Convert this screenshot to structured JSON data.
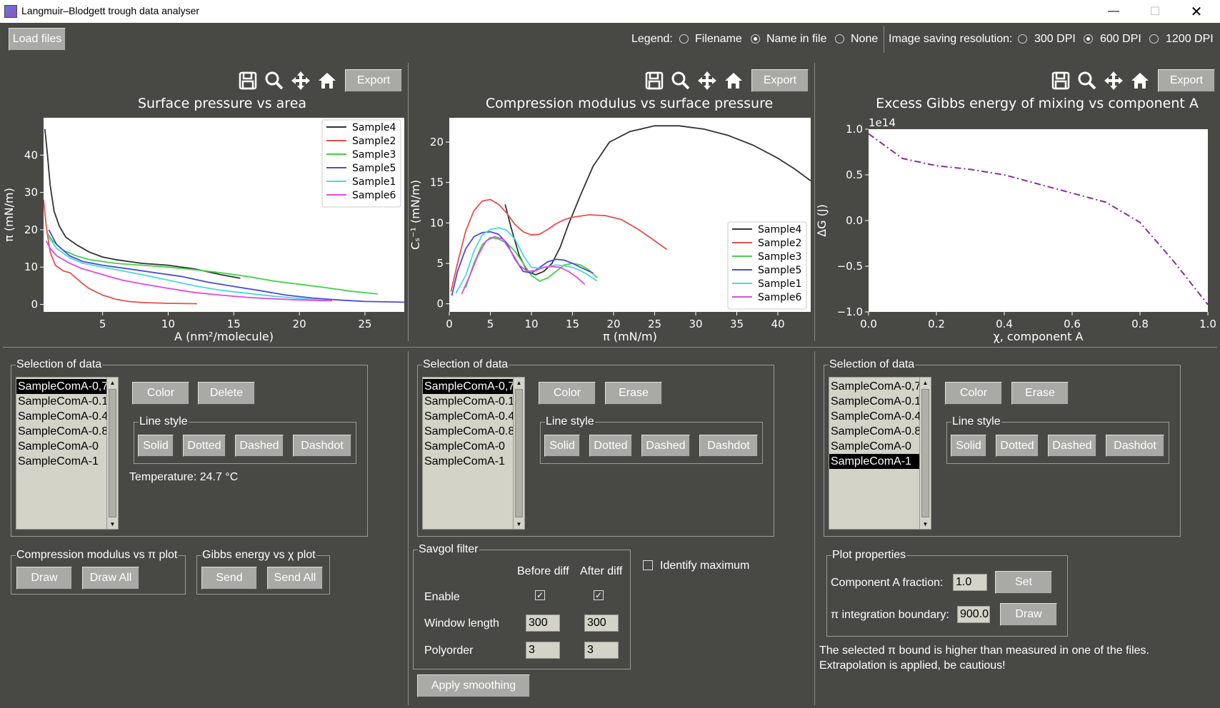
{
  "window": {
    "title": "Langmuir–Blodgett trough data analyser",
    "minimize_icon": "minimize-icon",
    "maximize_icon": "maximize-icon",
    "close_icon": "close-icon"
  },
  "toolbar": {
    "load_label": "Load files",
    "legend_label": "Legend:",
    "legend_options": [
      "Filename",
      "Name in file",
      "None"
    ],
    "legend_selected": "Name in file",
    "res_label": "Image saving resolution:",
    "res_options": [
      "300 DPI",
      "600 DPI",
      "1200 DPI"
    ],
    "res_selected": "600 DPI"
  },
  "plot_toolbar": {
    "icons": [
      "save-icon",
      "zoom-icon",
      "pan-icon",
      "home-icon"
    ],
    "export_label": "Export"
  },
  "colors": {
    "Sample4": "#333333",
    "Sample2": "#e8504a",
    "Sample3": "#44d04a",
    "Sample5": "#4b4bd8",
    "Sample1": "#4ad8e0",
    "Sample6": "#e04ae0",
    "gibbs": "#8b2c9b"
  },
  "chart_data": [
    {
      "type": "line",
      "title": "Surface pressure vs area",
      "xlabel": "A (nm²/molecule)",
      "ylabel": "π (mN/m)",
      "xlim": [
        0.5,
        28
      ],
      "ylim": [
        -2,
        50
      ],
      "xticks": [
        5,
        10,
        15,
        20,
        25
      ],
      "yticks": [
        0,
        10,
        20,
        30,
        40
      ],
      "legend": "top-right",
      "series": [
        {
          "name": "Sample4",
          "x": [
            0.6,
            0.8,
            1,
            1.3,
            1.7,
            2.2,
            3,
            4,
            5,
            6,
            8,
            10,
            12,
            14,
            15.5
          ],
          "y": [
            47,
            40,
            32,
            25,
            21,
            18,
            16,
            14,
            12.7,
            12,
            11,
            10.5,
            9.5,
            8,
            7
          ]
        },
        {
          "name": "Sample2",
          "x": [
            0.5,
            0.7,
            1,
            1.4,
            2,
            2.5,
            3,
            3.5,
            4,
            5,
            6,
            7,
            8,
            10,
            12.2
          ],
          "y": [
            28,
            21,
            14,
            10.5,
            9,
            8.5,
            7,
            5.5,
            4.2,
            2.5,
            1.4,
            0.8,
            0.5,
            0.3,
            0.2
          ]
        },
        {
          "name": "Sample3",
          "x": [
            0.8,
            1.2,
            2,
            3,
            4,
            6,
            8,
            10,
            12,
            14,
            16,
            18,
            20,
            22,
            24,
            26
          ],
          "y": [
            19,
            17,
            14.5,
            13,
            12,
            11,
            10.5,
            10,
            9.3,
            8.5,
            7.5,
            6.3,
            5.4,
            4.5,
            3.5,
            2.8
          ]
        },
        {
          "name": "Sample5",
          "x": [
            0.9,
            1.5,
            2.5,
            3.5,
            5,
            7,
            9,
            11,
            13,
            15,
            17,
            19,
            21,
            23,
            25,
            28
          ],
          "y": [
            20,
            16,
            13,
            11.5,
            10.5,
            9.5,
            8.5,
            7.5,
            6,
            4.8,
            3.7,
            2.5,
            1.7,
            1.2,
            0.8,
            0.6
          ]
        },
        {
          "name": "Sample1",
          "x": [
            0.9,
            1.5,
            2.5,
            3.5,
            5,
            6.5,
            8,
            10,
            12,
            14,
            16,
            18,
            20,
            22
          ],
          "y": [
            18,
            15,
            12.5,
            11,
            10,
            9,
            8,
            6.5,
            5,
            3.8,
            3,
            2.2,
            1.6,
            1
          ]
        },
        {
          "name": "Sample6",
          "x": [
            0.7,
            1,
            1.5,
            2.5,
            3.5,
            5,
            6.5,
            8,
            10,
            12,
            14,
            16,
            18,
            20,
            22.5
          ],
          "y": [
            17,
            15,
            13,
            11,
            9.5,
            8,
            6.5,
            5.5,
            4.3,
            3.2,
            2.5,
            1.9,
            1.5,
            1.2,
            1
          ]
        }
      ]
    },
    {
      "type": "line",
      "title": "Compression modulus vs surface pressure",
      "xlabel": "π (mN/m)",
      "ylabel": "Cₛ⁻¹ (mN/m)",
      "xlim": [
        0,
        44
      ],
      "ylim": [
        -1,
        23
      ],
      "xticks": [
        0,
        5,
        10,
        15,
        20,
        25,
        30,
        35,
        40
      ],
      "yticks": [
        0,
        5,
        10,
        15,
        20
      ],
      "legend": "lower-right",
      "series": [
        {
          "name": "Sample4",
          "x": [
            6.8,
            7.5,
            8.5,
            9.5,
            10.5,
            11.5,
            12.5,
            13.5,
            14.5,
            16,
            17.5,
            19.5,
            22,
            25,
            28,
            31,
            34,
            37,
            40,
            42,
            44
          ],
          "y": [
            12.3,
            9.5,
            6,
            4,
            3.6,
            4,
            5,
            7,
            9.8,
            13.5,
            17,
            20,
            21.3,
            22,
            22,
            21.6,
            20.8,
            19.6,
            18,
            16.7,
            15.2
          ]
        },
        {
          "name": "Sample2",
          "x": [
            0.2,
            1,
            2,
            3,
            4,
            5,
            6,
            7,
            8,
            9,
            10,
            11,
            12,
            13,
            14,
            15,
            17,
            19,
            21,
            23,
            25,
            26.5
          ],
          "y": [
            1.5,
            5,
            9,
            11.5,
            12.7,
            12.9,
            12.3,
            11.2,
            9.8,
            8.9,
            8.5,
            8.6,
            9.2,
            9.9,
            10.4,
            10.7,
            11,
            10.9,
            10.4,
            9.2,
            7.8,
            6.7
          ]
        },
        {
          "name": "Sample3",
          "x": [
            2,
            3,
            4,
            5,
            6,
            7,
            8,
            9,
            10,
            11,
            12,
            13,
            14,
            15,
            16,
            17,
            18
          ],
          "y": [
            2,
            5,
            7.3,
            8.2,
            8,
            7.5,
            6.5,
            5,
            3.5,
            2.8,
            3.2,
            4,
            4.8,
            5,
            4.8,
            4.2,
            3.2
          ]
        },
        {
          "name": "Sample5",
          "x": [
            0.3,
            1,
            2,
            3,
            4,
            5,
            6,
            7,
            8,
            9,
            10,
            11,
            12,
            13,
            14,
            15,
            16,
            17.5
          ],
          "y": [
            1,
            4,
            6.8,
            8.3,
            8.8,
            8.9,
            8.6,
            7.5,
            5.5,
            4,
            3.8,
            4.5,
            5.2,
            5.5,
            5.4,
            5,
            4.5,
            3.8
          ]
        },
        {
          "name": "Sample1",
          "x": [
            0.8,
            2,
            3,
            4,
            5,
            6,
            7,
            8,
            9,
            10,
            11,
            12,
            13,
            14,
            15,
            16,
            17,
            18
          ],
          "y": [
            1.3,
            3.5,
            6.5,
            8.5,
            9.2,
            9.4,
            9.1,
            8,
            6,
            4.5,
            4.4,
            4.6,
            4.8,
            4.7,
            4.5,
            4.1,
            3.5,
            2.8
          ]
        },
        {
          "name": "Sample6",
          "x": [
            1.5,
            2.5,
            3.5,
            4.5,
            5.5,
            6.5,
            7.5,
            8.5,
            9.5,
            10.5,
            11.5,
            12.5,
            13.5,
            14.5,
            15.5,
            16.5
          ],
          "y": [
            1.2,
            3.5,
            6,
            7.8,
            8.3,
            8,
            6.5,
            4.8,
            4,
            4.1,
            4.5,
            4.6,
            4.5,
            4,
            3.3,
            2.4
          ]
        }
      ]
    },
    {
      "type": "line",
      "title": "Excess Gibbs energy of mixing vs component A",
      "xlabel": "χ, component A",
      "ylabel": "ΔG (J)",
      "offset_label": "1e14",
      "xlim": [
        0,
        1
      ],
      "ylim": [
        -1,
        1
      ],
      "xticks": [
        "0.0",
        "0.2",
        "0.4",
        "0.6",
        "0.8",
        "1.0"
      ],
      "yticks": [
        "−1.0",
        "−0.5",
        "0.0",
        "0.5",
        "1.0"
      ],
      "series": [
        {
          "x": [
            0,
            0.1,
            0.2,
            0.3,
            0.4,
            0.5,
            0.6,
            0.7,
            0.8,
            0.9,
            1.0
          ],
          "y": [
            0.95,
            0.68,
            0.6,
            0.56,
            0.5,
            0.4,
            0.3,
            0.2,
            -0.02,
            -0.45,
            -0.92
          ]
        }
      ]
    }
  ],
  "panel1": {
    "frame_label": "Selection of data",
    "items": [
      "SampleComA-0,7",
      "SampleComA-0.1",
      "SampleComA-0.4",
      "SampleComA-0.8",
      "SampleComA-0",
      "SampleComA-1"
    ],
    "selected": 0,
    "color_label": "Color",
    "delete_label": "Delete",
    "linestyle_label": "Line style",
    "styles": [
      "Solid",
      "Dotted",
      "Dashed",
      "Dashdot"
    ],
    "temperature": "Temperature: 24.7 °C",
    "comp_frame": "Compression modulus vs π plot",
    "draw": "Draw",
    "draw_all": "Draw All",
    "gibbs_frame": "Gibbs energy vs χ plot",
    "send": "Send",
    "send_all": "Send All"
  },
  "panel2": {
    "frame_label": "Selection of data",
    "items": [
      "SampleComA-0,7",
      "SampleComA-0.1",
      "SampleComA-0.4",
      "SampleComA-0.8",
      "SampleComA-0",
      "SampleComA-1"
    ],
    "selected": 0,
    "color_label": "Color",
    "erase_label": "Erase",
    "linestyle_label": "Line style",
    "styles": [
      "Solid",
      "Dotted",
      "Dashed",
      "Dashdot"
    ],
    "savgol_frame": "Savgol filter",
    "before": "Before diff",
    "after": "After diff",
    "enable": "Enable",
    "window_length": "Window length",
    "polyorder": "Polyorder",
    "wl_before": "300",
    "wl_after": "300",
    "po_before": "3",
    "po_after": "3",
    "identify": "Identify maximum",
    "apply": "Apply smoothing"
  },
  "panel3": {
    "frame_label": "Selection of data",
    "items": [
      "SampleComA-0,7",
      "SampleComA-0.1",
      "SampleComA-0.4",
      "SampleComA-0.8",
      "SampleComA-0",
      "SampleComA-1"
    ],
    "selected": 5,
    "color_label": "Color",
    "erase_label": "Erase",
    "linestyle_label": "Line style",
    "styles": [
      "Solid",
      "Dotted",
      "Dashed",
      "Dashdot"
    ],
    "props_frame": "Plot properties",
    "comp_label": "Component A fraction:",
    "comp_value": "1.0",
    "set": "Set",
    "pi_label": "π integration boundary:",
    "pi_value": "900.0",
    "draw": "Draw",
    "warning1": "The selected π bound is higher than measured in one of the files.",
    "warning2": "Extrapolation is applied, be cautious!"
  }
}
